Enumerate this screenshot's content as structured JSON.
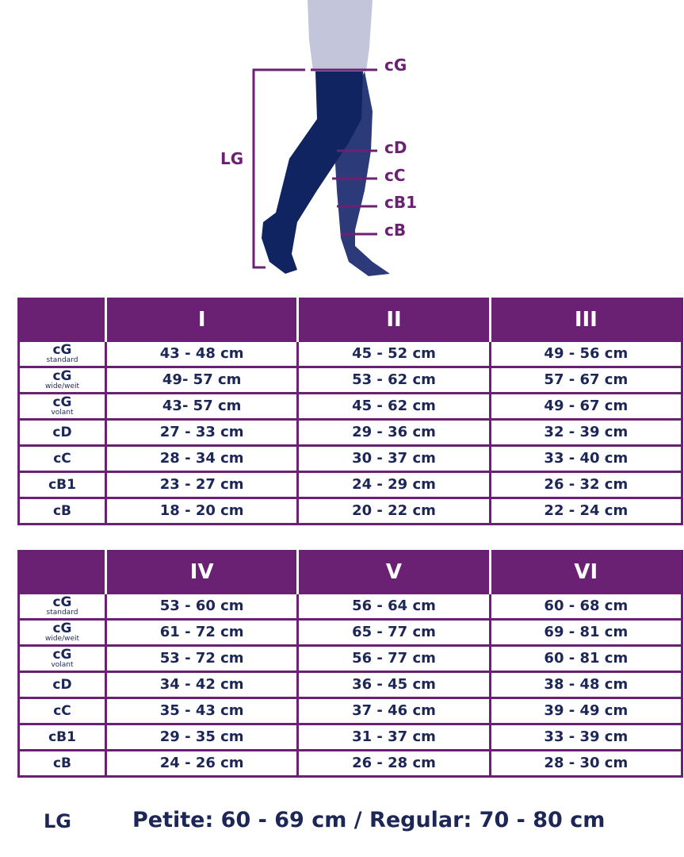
{
  "diagram": {
    "labels": {
      "cG": "cG",
      "cD": "cD",
      "cC": "cC",
      "cB1": "cB1",
      "cB": "cB",
      "LG": "LG"
    },
    "colors": {
      "accent": "#6b2173",
      "stocking_front": "#0f2461",
      "stocking_back": "#2c3a7a",
      "skin": "#c3c5da"
    }
  },
  "tables": [
    {
      "headers": [
        "",
        "I",
        "II",
        "III"
      ],
      "rows": [
        {
          "label": "cG",
          "sub": "standard",
          "values": [
            "43 - 48 cm",
            "45 - 52 cm",
            "49 - 56 cm"
          ]
        },
        {
          "label": "cG",
          "sub": "wide/weit",
          "values": [
            "49- 57 cm",
            "53 - 62 cm",
            "57 - 67 cm"
          ]
        },
        {
          "label": "cG",
          "sub": "volant",
          "values": [
            "43- 57 cm",
            "45 - 62 cm",
            "49 - 67 cm"
          ]
        },
        {
          "label": "cD",
          "sub": "",
          "values": [
            "27 - 33 cm",
            "29 - 36 cm",
            "32 - 39 cm"
          ]
        },
        {
          "label": "cC",
          "sub": "",
          "values": [
            "28 - 34 cm",
            "30 - 37 cm",
            "33 - 40 cm"
          ]
        },
        {
          "label": "cB1",
          "sub": "",
          "values": [
            "23 - 27 cm",
            "24 - 29 cm",
            "26 - 32 cm"
          ]
        },
        {
          "label": "cB",
          "sub": "",
          "values": [
            "18 - 20 cm",
            "20 - 22 cm",
            "22 - 24 cm"
          ]
        }
      ]
    },
    {
      "headers": [
        "",
        "IV",
        "V",
        "VI"
      ],
      "rows": [
        {
          "label": "cG",
          "sub": "standard",
          "values": [
            "53 - 60 cm",
            "56 - 64 cm",
            "60 - 68 cm"
          ]
        },
        {
          "label": "cG",
          "sub": "wide/weit",
          "values": [
            "61 - 72 cm",
            "65 - 77 cm",
            "69 - 81 cm"
          ]
        },
        {
          "label": "cG",
          "sub": "volant",
          "values": [
            "53 - 72 cm",
            "56 - 77 cm",
            "60 - 81 cm"
          ]
        },
        {
          "label": "cD",
          "sub": "",
          "values": [
            "34 - 42 cm",
            "36 - 45 cm",
            "38 - 48 cm"
          ]
        },
        {
          "label": "cC",
          "sub": "",
          "values": [
            "35 - 43 cm",
            "37 - 46 cm",
            "39 - 49 cm"
          ]
        },
        {
          "label": "cB1",
          "sub": "",
          "values": [
            "29 - 35 cm",
            "31 - 37 cm",
            "33 - 39 cm"
          ]
        },
        {
          "label": "cB",
          "sub": "",
          "values": [
            "24 - 26 cm",
            "26 - 28 cm",
            "28 - 30 cm"
          ]
        }
      ]
    }
  ],
  "footer": {
    "label": "LG",
    "text": "Petite: 60 - 69 cm / Regular: 70 - 80 cm"
  }
}
